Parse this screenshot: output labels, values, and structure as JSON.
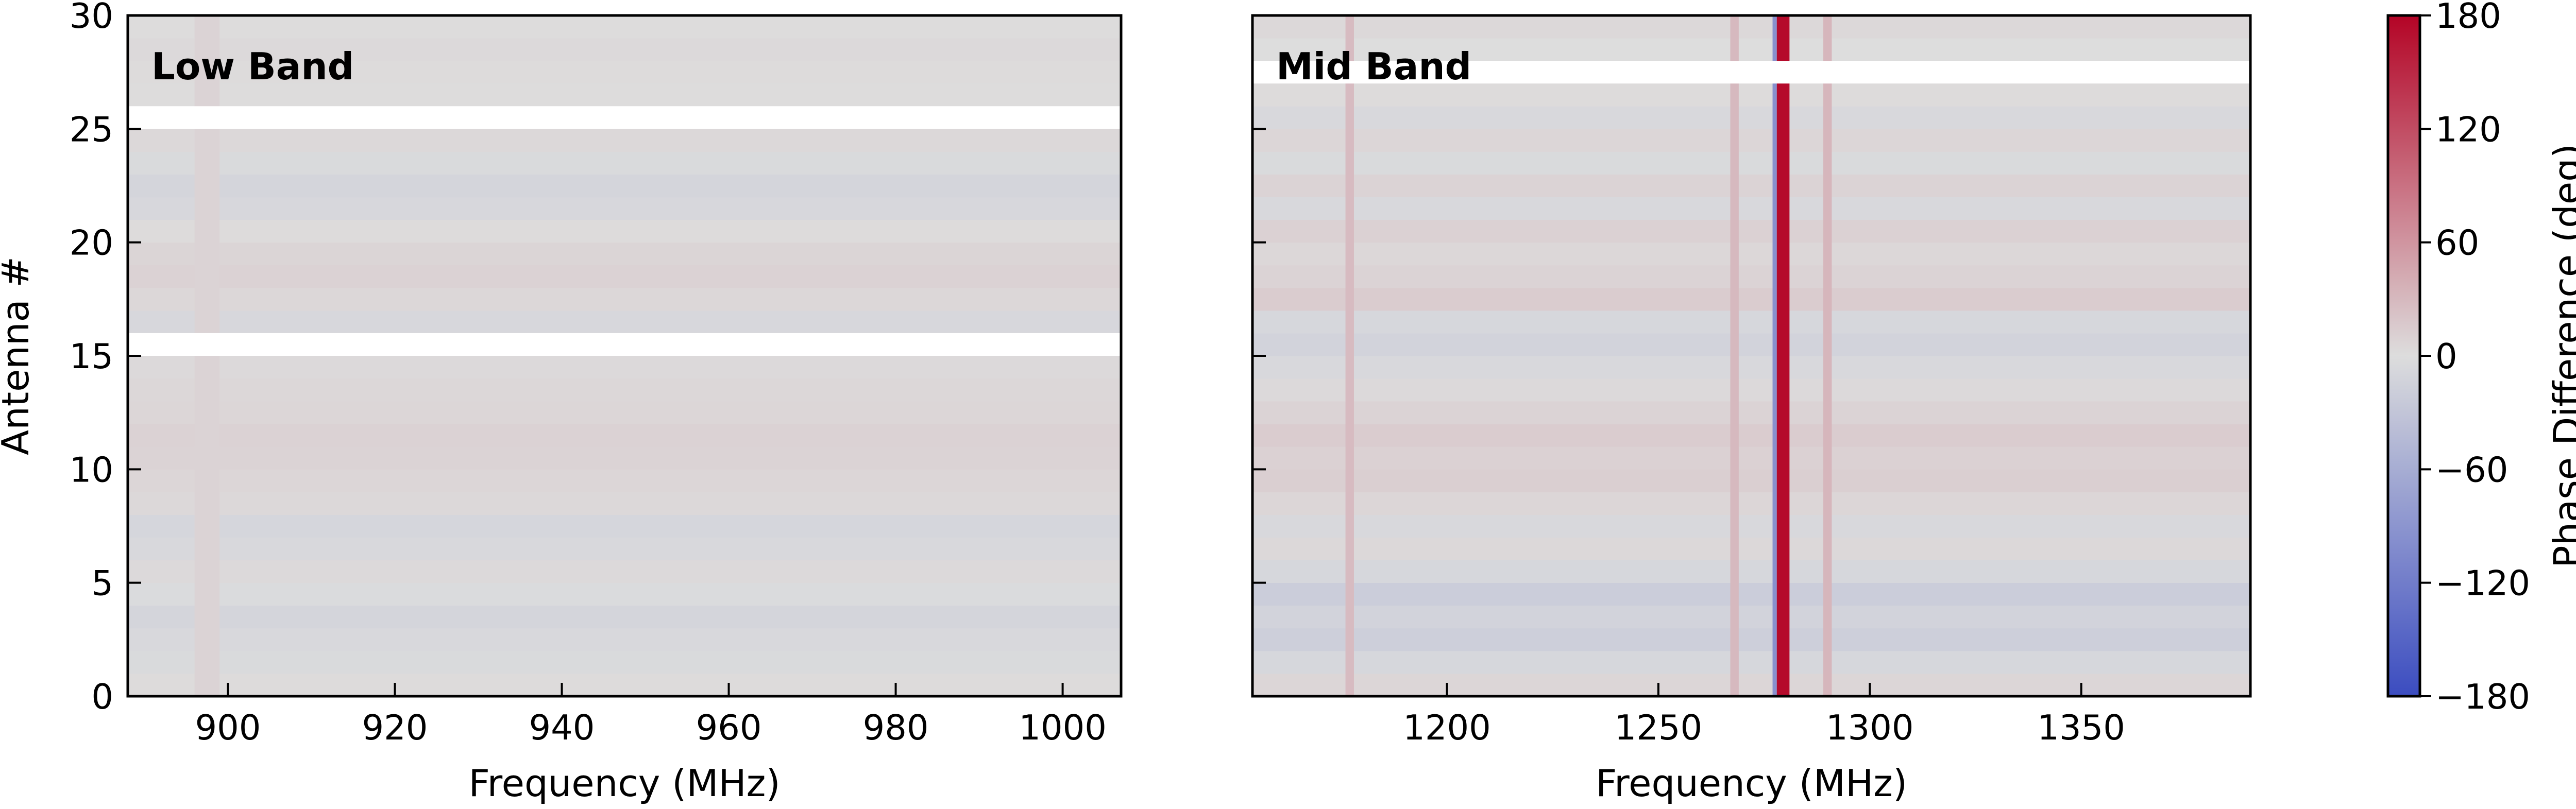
{
  "chart_data": [
    {
      "type": "heatmap",
      "title": "Low Band",
      "xlabel": "Frequency (MHz)",
      "ylabel": "Antenna #",
      "xlim": [
        888,
        1007
      ],
      "ylim": [
        0,
        30
      ],
      "xticks": [
        900,
        920,
        940,
        960,
        980,
        1000
      ],
      "xtick_labels": [
        "900",
        "920",
        "940",
        "960",
        "980",
        "1000"
      ],
      "yticks": [
        0,
        5,
        10,
        15,
        20,
        25,
        30
      ],
      "ytick_labels": [
        "0",
        "5",
        "10",
        "15",
        "20",
        "25",
        "30"
      ],
      "blank_rows": [
        15,
        25
      ],
      "rows": [
        {
          "antenna": 0,
          "phase_deg": 2
        },
        {
          "antenna": 1,
          "phase_deg": -4
        },
        {
          "antenna": 2,
          "phase_deg": -6
        },
        {
          "antenna": 3,
          "phase_deg": -10
        },
        {
          "antenna": 4,
          "phase_deg": -3
        },
        {
          "antenna": 5,
          "phase_deg": 3
        },
        {
          "antenna": 6,
          "phase_deg": -6
        },
        {
          "antenna": 7,
          "phase_deg": -9
        },
        {
          "antenna": 8,
          "phase_deg": 4
        },
        {
          "antenna": 9,
          "phase_deg": 6
        },
        {
          "antenna": 10,
          "phase_deg": 8
        },
        {
          "antenna": 11,
          "phase_deg": 9
        },
        {
          "antenna": 12,
          "phase_deg": 6
        },
        {
          "antenna": 13,
          "phase_deg": 5
        },
        {
          "antenna": 14,
          "phase_deg": 3
        },
        {
          "antenna": 16,
          "phase_deg": -7
        },
        {
          "antenna": 17,
          "phase_deg": 5
        },
        {
          "antenna": 18,
          "phase_deg": 9
        },
        {
          "antenna": 19,
          "phase_deg": 7
        },
        {
          "antenna": 20,
          "phase_deg": 2
        },
        {
          "antenna": 21,
          "phase_deg": -7
        },
        {
          "antenna": 22,
          "phase_deg": -10
        },
        {
          "antenna": 23,
          "phase_deg": -4
        },
        {
          "antenna": 24,
          "phase_deg": 4
        },
        {
          "antenna": 26,
          "phase_deg": 1
        },
        {
          "antenna": 27,
          "phase_deg": 2
        },
        {
          "antenna": 28,
          "phase_deg": 3
        },
        {
          "antenna": 29,
          "phase_deg": 1
        }
      ],
      "channel_features": [
        {
          "freq_mhz": [
            896,
            899
          ],
          "phase_deg": 8
        }
      ]
    },
    {
      "type": "heatmap",
      "title": "Mid Band",
      "xlabel": "Frequency (MHz)",
      "ylabel": "",
      "xlim": [
        1154,
        1390
      ],
      "ylim": [
        0,
        30
      ],
      "xticks": [
        1200,
        1250,
        1300,
        1350
      ],
      "xtick_labels": [
        "1200",
        "1250",
        "1300",
        "1350"
      ],
      "yticks": [
        0,
        5,
        10,
        15,
        20,
        25,
        30
      ],
      "ytick_labels": [],
      "blank_rows": [
        27
      ],
      "rows": [
        {
          "antenna": 0,
          "phase_deg": 6
        },
        {
          "antenna": 1,
          "phase_deg": -8
        },
        {
          "antenna": 2,
          "phase_deg": -18
        },
        {
          "antenna": 3,
          "phase_deg": -12
        },
        {
          "antenna": 4,
          "phase_deg": -20
        },
        {
          "antenna": 5,
          "phase_deg": -8
        },
        {
          "antenna": 6,
          "phase_deg": 4
        },
        {
          "antenna": 7,
          "phase_deg": -6
        },
        {
          "antenna": 8,
          "phase_deg": 6
        },
        {
          "antenna": 9,
          "phase_deg": 12
        },
        {
          "antenna": 10,
          "phase_deg": 10
        },
        {
          "antenna": 11,
          "phase_deg": 14
        },
        {
          "antenna": 12,
          "phase_deg": 8
        },
        {
          "antenna": 13,
          "phase_deg": 3
        },
        {
          "antenna": 14,
          "phase_deg": -6
        },
        {
          "antenna": 15,
          "phase_deg": -12
        },
        {
          "antenna": 16,
          "phase_deg": -8
        },
        {
          "antenna": 17,
          "phase_deg": 14
        },
        {
          "antenna": 18,
          "phase_deg": 8
        },
        {
          "antenna": 19,
          "phase_deg": 5
        },
        {
          "antenna": 20,
          "phase_deg": 10
        },
        {
          "antenna": 21,
          "phase_deg": -6
        },
        {
          "antenna": 22,
          "phase_deg": 8
        },
        {
          "antenna": 23,
          "phase_deg": -4
        },
        {
          "antenna": 24,
          "phase_deg": 6
        },
        {
          "antenna": 25,
          "phase_deg": -6
        },
        {
          "antenna": 26,
          "phase_deg": 2
        },
        {
          "antenna": 28,
          "phase_deg": 0
        },
        {
          "antenna": 29,
          "phase_deg": 4
        }
      ],
      "channel_features": [
        {
          "freq_mhz": [
            1176,
            1178
          ],
          "phase_deg": 28
        },
        {
          "freq_mhz": [
            1267,
            1269
          ],
          "phase_deg": 30
        },
        {
          "freq_mhz": [
            1277,
            1278
          ],
          "phase_deg": -95
        },
        {
          "freq_mhz": [
            1278,
            1281
          ],
          "phase_deg": 175
        },
        {
          "freq_mhz": [
            1289,
            1291
          ],
          "phase_deg": 32
        }
      ]
    }
  ],
  "colorbar": {
    "label": "Phase Difference (deg)",
    "cmap": "coolwarm",
    "vmin": -180,
    "vmax": 180,
    "ticks": [
      180,
      120,
      60,
      0,
      -60,
      -120,
      -180
    ],
    "tick_labels": [
      "180",
      "120",
      "60",
      "0",
      "−60",
      "−120",
      "−180"
    ],
    "color_min": "#3b4cc0",
    "color_mid": "#dddddd",
    "color_max": "#b40426"
  }
}
